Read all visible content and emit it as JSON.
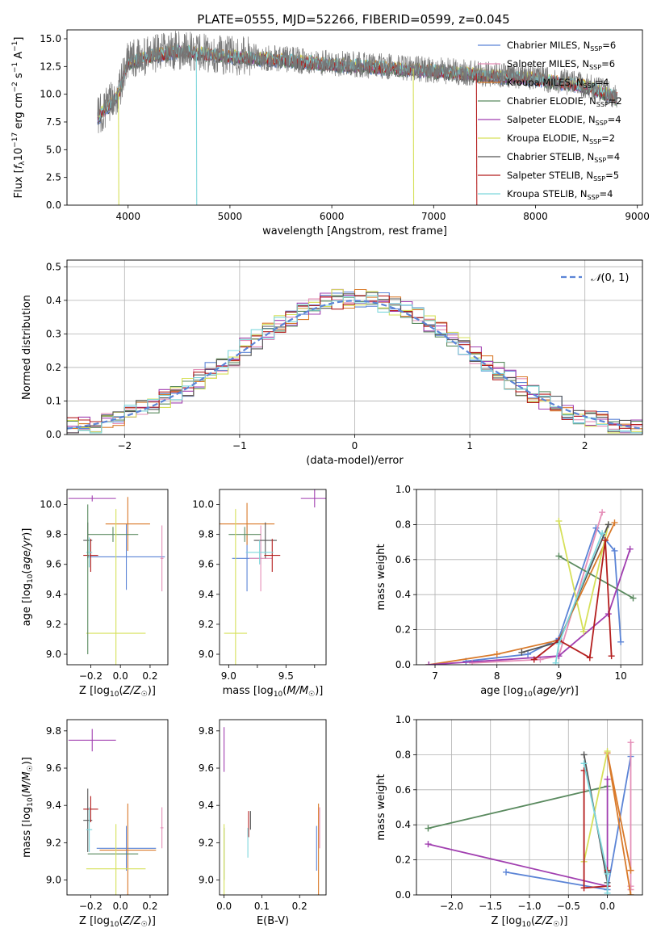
{
  "figure_title": "PLATE=0555, MJD=52266, FIBERID=0599, z=0.045",
  "colors": {
    "chabrier_miles": "#5b84d6",
    "salpeter_miles": "#e58fb8",
    "kroupa_miles": "#d97a2a",
    "chabrier_elodie": "#5a8a5f",
    "salpeter_elodie": "#a13fb0",
    "kroupa_elodie": "#d6e05a",
    "chabrier_stelib": "#555555",
    "salpeter_stelib": "#b41e1e",
    "kroupa_stelib": "#7ed7dc",
    "gaussian": "#5b84d6",
    "data": "#777777"
  },
  "series_names": [
    "Chabrier MILES, N_SSP=6",
    "Salpeter MILES, N_SSP=6",
    "Kroupa MILES, N_SSP=4",
    "Chabrier ELODIE, N_SSP=2",
    "Salpeter ELODIE, N_SSP=4",
    "Kroupa ELODIE, N_SSP=2",
    "Chabrier STELIB, N_SSP=4",
    "Salpeter STELIB, N_SSP=5",
    "Kroupa STELIB, N_SSP=4"
  ],
  "chart_data": [
    {
      "type": "line",
      "panel": "spectrum",
      "xlabel": "wavelength [Angstrom, rest frame]",
      "ylabel": "Flux [f_λ 10^-17 erg cm^-2 s^-1 A^-1]",
      "xlim": [
        3400,
        9050
      ],
      "ylim": [
        0,
        15.8
      ],
      "xticks": [
        4000,
        5000,
        6000,
        7000,
        8000,
        9000
      ],
      "yticks": [
        0.0,
        2.5,
        5.0,
        7.5,
        10.0,
        12.5,
        15.0
      ],
      "legend": "top-right",
      "data_envelope": {
        "x": [
          3700,
          3900,
          4000,
          4200,
          4500,
          5000,
          5500,
          6000,
          6500,
          7000,
          7500,
          8000,
          8500,
          8800
        ],
        "y": [
          8.0,
          10.0,
          13.0,
          13.5,
          14.0,
          13.5,
          13.2,
          12.8,
          12.5,
          12.2,
          11.8,
          11.5,
          10.8,
          9.8
        ]
      },
      "dropouts": [
        {
          "series": "Kroupa ELODIE",
          "x": 3905,
          "to": 0
        },
        {
          "series": "Kroupa STELIB",
          "x": 4670,
          "to": 0
        },
        {
          "series": "Salpeter STELIB",
          "x": 7420,
          "to": 0
        },
        {
          "series": "Kroupa ELODIE",
          "x": 6800,
          "to": 0
        }
      ]
    },
    {
      "type": "line",
      "panel": "residuals",
      "xlabel": "(data-model)/error",
      "ylabel": "Normed distribution",
      "xlim": [
        -2.5,
        2.5
      ],
      "ylim": [
        0,
        0.52
      ],
      "xticks": [
        -2,
        -1,
        0,
        1,
        2
      ],
      "yticks": [
        0.0,
        0.1,
        0.2,
        0.3,
        0.4,
        0.5
      ],
      "grid": true,
      "legend_label": "N(0,1)",
      "legend": "top-right",
      "bin_width": 0.1
    },
    {
      "type": "scatter",
      "panel": "age_vs_Z",
      "xlabel": "Z [log10(Z/Z☉)]",
      "ylabel": "age [log10(age/yr)]",
      "xlim": [
        -0.36,
        0.32
      ],
      "ylim": [
        8.93,
        10.1
      ],
      "xticks": [
        -0.2,
        0.0,
        0.2
      ],
      "yticks": [
        9.0,
        9.2,
        9.4,
        9.6,
        9.8,
        10.0
      ],
      "points": [
        {
          "s": "chabrier_miles",
          "x": 0.04,
          "y": 9.65,
          "xerr": 0.26,
          "yerr": 0.22
        },
        {
          "s": "salpeter_miles",
          "x": 0.28,
          "y": 9.64,
          "xerr": 0.01,
          "yerr": 0.22
        },
        {
          "s": "kroupa_miles",
          "x": 0.05,
          "y": 9.87,
          "xerr": 0.15,
          "yerr": 0.18
        },
        {
          "s": "chabrier_elodie",
          "x": -0.05,
          "y": 9.8,
          "xerr": 0.17,
          "yerr": 0.05
        },
        {
          "s": "salpeter_elodie",
          "x": -0.19,
          "y": 10.04,
          "xerr": 0.16,
          "yerr": 0.02
        },
        {
          "s": "kroupa_elodie",
          "x": -0.03,
          "y": 9.14,
          "xerr": 0.2,
          "yerr": 0.83
        },
        {
          "s": "chabrier_stelib",
          "x": -0.22,
          "y": 9.76,
          "xerr": 0.03,
          "yerr": 0.12
        },
        {
          "s": "salpeter_stelib",
          "x": -0.2,
          "y": 9.66,
          "xerr": 0.05,
          "yerr": 0.11
        },
        {
          "s": "kroupa_stelib",
          "x": -0.21,
          "y": 9.68,
          "xerr": 0.02,
          "yerr": 0.1
        },
        {
          "s": "chabrier_elodie",
          "x": -0.22,
          "y": 9.5,
          "xerr": 0.0,
          "yerr": 0.5
        }
      ]
    },
    {
      "type": "scatter",
      "panel": "age_vs_mass",
      "xlabel": "mass [log10(M/M☉)]",
      "ylabel": "",
      "xlim": [
        8.92,
        9.85
      ],
      "ylim": [
        8.93,
        10.1
      ],
      "xticks": [
        9.0,
        9.25,
        9.5,
        9.75
      ],
      "xticklabels": [
        "9.0",
        "",
        "9.5",
        ""
      ],
      "yticks": [
        9.0,
        9.2,
        9.4,
        9.6,
        9.8,
        10.0
      ],
      "points": [
        {
          "s": "chabrier_miles",
          "x": 9.16,
          "y": 9.64,
          "xerr": 0.13,
          "yerr": 0.22
        },
        {
          "s": "salpeter_miles",
          "x": 9.28,
          "y": 9.64,
          "xerr": 0.1,
          "yerr": 0.22
        },
        {
          "s": "kroupa_miles",
          "x": 9.16,
          "y": 9.87,
          "xerr": 0.24,
          "yerr": 0.14
        },
        {
          "s": "chabrier_elodie",
          "x": 9.14,
          "y": 9.8,
          "xerr": 0.14,
          "yerr": 0.05
        },
        {
          "s": "salpeter_elodie",
          "x": 9.75,
          "y": 10.04,
          "xerr": 0.12,
          "yerr": 0.06
        },
        {
          "s": "kroupa_elodie",
          "x": 9.06,
          "y": 9.14,
          "xerr": 0.1,
          "yerr": 0.83
        },
        {
          "s": "chabrier_stelib",
          "x": 9.32,
          "y": 9.76,
          "xerr": 0.1,
          "yerr": 0.12
        },
        {
          "s": "salpeter_stelib",
          "x": 9.38,
          "y": 9.66,
          "xerr": 0.07,
          "yerr": 0.11
        },
        {
          "s": "kroupa_stelib",
          "x": 9.27,
          "y": 9.68,
          "xerr": 0.12,
          "yerr": 0.08
        }
      ]
    },
    {
      "type": "line",
      "panel": "weight_vs_age",
      "xlabel": "age [log10(age/yr)]",
      "ylabel": "mass weight",
      "xlim": [
        6.7,
        10.35
      ],
      "ylim": [
        0,
        1
      ],
      "xticks": [
        7,
        8,
        9,
        10
      ],
      "yticks": [
        0.0,
        0.2,
        0.4,
        0.6,
        0.8,
        1.0
      ],
      "grid": true,
      "series": [
        {
          "s": "chabrier_miles",
          "x": [
            7.5,
            8.5,
            9.0,
            9.6,
            9.9,
            10.0
          ],
          "y": [
            0.02,
            0.06,
            0.15,
            0.78,
            0.65,
            0.13
          ]
        },
        {
          "s": "salpeter_miles",
          "x": [
            7.6,
            8.7,
            9.0,
            9.7
          ],
          "y": [
            0.01,
            0.03,
            0.05,
            0.87
          ]
        },
        {
          "s": "kroupa_miles",
          "x": [
            6.9,
            8.0,
            9.0,
            9.9
          ],
          "y": [
            0.0,
            0.06,
            0.14,
            0.81
          ]
        },
        {
          "s": "chabrier_elodie",
          "x": [
            9.0,
            10.2
          ],
          "y": [
            0.62,
            0.38
          ]
        },
        {
          "s": "salpeter_elodie",
          "x": [
            6.9,
            9.0,
            9.8,
            10.15
          ],
          "y": [
            0.0,
            0.05,
            0.29,
            0.66
          ]
        },
        {
          "s": "kroupa_elodie",
          "x": [
            9.0,
            9.4,
            9.8
          ],
          "y": [
            0.82,
            0.19,
            0.8
          ]
        },
        {
          "s": "chabrier_stelib",
          "x": [
            8.4,
            9.0,
            9.8
          ],
          "y": [
            0.07,
            0.13,
            0.8
          ]
        },
        {
          "s": "salpeter_stelib",
          "x": [
            8.6,
            9.0,
            9.5,
            9.75,
            9.85
          ],
          "y": [
            0.03,
            0.14,
            0.04,
            0.71,
            0.05
          ]
        },
        {
          "s": "kroupa_stelib",
          "x": [
            8.95,
            9.0,
            9.7
          ],
          "y": [
            0.01,
            0.12,
            0.75
          ]
        }
      ]
    },
    {
      "type": "scatter",
      "panel": "mass_vs_Z",
      "xlabel": "Z [log10(Z/Z☉)]",
      "ylabel": "mass [log10(M/M☉)]",
      "xlim": [
        -0.36,
        0.32
      ],
      "ylim": [
        8.92,
        9.86
      ],
      "xticks": [
        -0.2,
        0.0,
        0.2
      ],
      "yticks": [
        9.0,
        9.2,
        9.4,
        9.6,
        9.8
      ],
      "points": [
        {
          "s": "chabrier_miles",
          "x": 0.04,
          "y": 9.17,
          "xerr": 0.2,
          "yerr": 0.12
        },
        {
          "s": "salpeter_miles",
          "x": 0.28,
          "y": 9.28,
          "xerr": 0.01,
          "yerr": 0.11
        },
        {
          "s": "kroupa_miles",
          "x": 0.05,
          "y": 9.16,
          "xerr": 0.19,
          "yerr": 0.25
        },
        {
          "s": "chabrier_elodie",
          "x": -0.05,
          "y": 9.14,
          "xerr": 0.17,
          "yerr": 0.0
        },
        {
          "s": "salpeter_elodie",
          "x": -0.19,
          "y": 9.75,
          "xerr": 0.16,
          "yerr": 0.06
        },
        {
          "s": "kroupa_elodie",
          "x": -0.03,
          "y": 9.06,
          "xerr": 0.2,
          "yerr": 0.24
        },
        {
          "s": "chabrier_stelib",
          "x": -0.22,
          "y": 9.32,
          "xerr": 0.03,
          "yerr": 0.17
        },
        {
          "s": "salpeter_stelib",
          "x": -0.2,
          "y": 9.38,
          "xerr": 0.05,
          "yerr": 0.07
        },
        {
          "s": "kroupa_stelib",
          "x": -0.21,
          "y": 9.27,
          "xerr": 0.02,
          "yerr": 0.12
        }
      ]
    },
    {
      "type": "scatter",
      "panel": "mass_vs_ebv",
      "xlabel": "E(B-V)",
      "ylabel": "",
      "xlim": [
        -0.012,
        0.27
      ],
      "ylim": [
        8.92,
        9.86
      ],
      "xticks": [
        0.0,
        0.1,
        0.2
      ],
      "yticks": [
        9.0,
        9.2,
        9.4,
        9.6,
        9.8
      ],
      "points": [
        {
          "s": "chabrier_miles",
          "x": 0.245,
          "y": 9.17,
          "xerr": 0.0,
          "yerr": 0.12
        },
        {
          "s": "salpeter_miles",
          "x": 0.253,
          "y": 9.28,
          "xerr": 0.0,
          "yerr": 0.11
        },
        {
          "s": "kroupa_miles",
          "x": 0.25,
          "y": 9.16,
          "xerr": 0.0,
          "yerr": 0.25
        },
        {
          "s": "chabrier_elodie",
          "x": 0.0,
          "y": 9.14,
          "xerr": 0.0,
          "yerr": 0.14
        },
        {
          "s": "salpeter_elodie",
          "x": 0.0,
          "y": 9.7,
          "xerr": 0.0,
          "yerr": 0.12
        },
        {
          "s": "kroupa_elodie",
          "x": 0.0,
          "y": 9.1,
          "xerr": 0.0,
          "yerr": 0.2
        },
        {
          "s": "chabrier_stelib",
          "x": 0.07,
          "y": 9.32,
          "xerr": 0.0,
          "yerr": 0.05
        },
        {
          "s": "salpeter_stelib",
          "x": 0.065,
          "y": 9.3,
          "xerr": 0.0,
          "yerr": 0.07
        },
        {
          "s": "kroupa_stelib",
          "x": 0.063,
          "y": 9.2,
          "xerr": 0.0,
          "yerr": 0.08
        }
      ]
    },
    {
      "type": "line",
      "panel": "weight_vs_Z",
      "xlabel": "Z [log10(Z/Z☉)]",
      "ylabel": "mass weight",
      "xlim": [
        -2.45,
        0.45
      ],
      "ylim": [
        0,
        1
      ],
      "xticks": [
        -2.0,
        -1.5,
        -1.0,
        -0.5,
        0.0
      ],
      "yticks": [
        0.0,
        0.2,
        0.4,
        0.6,
        0.8,
        1.0
      ],
      "grid": true,
      "series": [
        {
          "s": "chabrier_miles",
          "x": [
            -1.3,
            0.0,
            0.3
          ],
          "y": [
            0.13,
            0.03,
            0.79
          ]
        },
        {
          "s": "salpeter_miles",
          "x": [
            0.3,
            0.3,
            0.3
          ],
          "y": [
            0.87,
            0.05,
            0.03
          ]
        },
        {
          "s": "kroupa_miles",
          "x": [
            0.3,
            0.0,
            0.3
          ],
          "y": [
            0.14,
            0.81,
            0.0
          ]
        },
        {
          "s": "chabrier_elodie",
          "x": [
            -2.3,
            0.0
          ],
          "y": [
            0.38,
            0.62
          ]
        },
        {
          "s": "salpeter_elodie",
          "x": [
            -2.3,
            0.0,
            0.0
          ],
          "y": [
            0.29,
            0.05,
            0.66
          ]
        },
        {
          "s": "kroupa_elodie",
          "x": [
            -0.3,
            0.0
          ],
          "y": [
            0.19,
            0.82
          ]
        },
        {
          "s": "chabrier_stelib",
          "x": [
            -0.3,
            0.0,
            0.0
          ],
          "y": [
            0.8,
            0.07,
            0.13
          ]
        },
        {
          "s": "salpeter_stelib",
          "x": [
            -0.3,
            -0.3,
            0.0,
            0.0
          ],
          "y": [
            0.71,
            0.04,
            0.05,
            0.14
          ]
        },
        {
          "s": "kroupa_stelib",
          "x": [
            -0.3,
            0.0,
            0.0
          ],
          "y": [
            0.75,
            0.12,
            0.01
          ]
        }
      ]
    }
  ]
}
